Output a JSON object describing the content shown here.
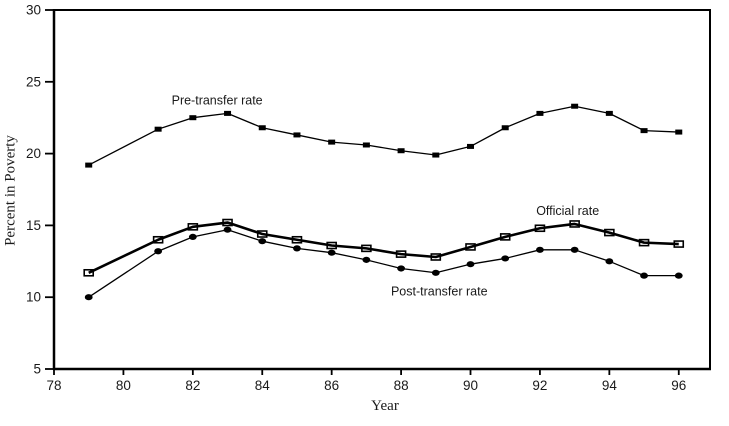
{
  "chart_data": {
    "type": "line",
    "title": "",
    "xlabel": "Year",
    "ylabel": "Percent in Poverty",
    "x": [
      79,
      81,
      82,
      83,
      84,
      85,
      86,
      87,
      88,
      89,
      90,
      91,
      92,
      93,
      94,
      95,
      96
    ],
    "series": [
      {
        "name": "Pre-transfer rate",
        "marker": "filled-square",
        "line_width": 1.3,
        "values": [
          19.2,
          21.7,
          22.5,
          22.8,
          21.8,
          21.3,
          20.8,
          20.6,
          20.2,
          19.9,
          20.5,
          21.8,
          22.8,
          23.3,
          22.8,
          21.6,
          21.5
        ]
      },
      {
        "name": "Official rate",
        "marker": "open-square",
        "line_width": 2.6,
        "values": [
          11.7,
          14.0,
          14.9,
          15.2,
          14.4,
          14.0,
          13.6,
          13.4,
          13.0,
          12.8,
          13.5,
          14.2,
          14.8,
          15.1,
          14.5,
          13.8,
          13.7
        ]
      },
      {
        "name": "Post-transfer rate",
        "marker": "filled-circle",
        "line_width": 1.3,
        "values": [
          10.0,
          13.2,
          14.2,
          14.7,
          13.9,
          13.4,
          13.1,
          12.6,
          12.0,
          11.7,
          12.3,
          12.7,
          13.3,
          13.3,
          12.5,
          11.5,
          11.5
        ]
      }
    ],
    "annotations": [
      {
        "text": "Pre-transfer rate",
        "x": 82.7,
        "y": 23.7
      },
      {
        "text": "Official rate",
        "x": 92.8,
        "y": 16.0
      },
      {
        "text": "Post-transfer rate",
        "x": 89.1,
        "y": 10.4
      }
    ],
    "xticks": [
      78,
      80,
      82,
      84,
      86,
      88,
      90,
      92,
      94,
      96
    ],
    "yticks": [
      5,
      10,
      15,
      20,
      25,
      30
    ],
    "xlim": [
      78,
      96.9
    ],
    "ylim": [
      5,
      30
    ],
    "grid": false,
    "legend_position": "inline-annotations",
    "colors": {
      "line": "#000000",
      "background": "#ffffff"
    }
  }
}
